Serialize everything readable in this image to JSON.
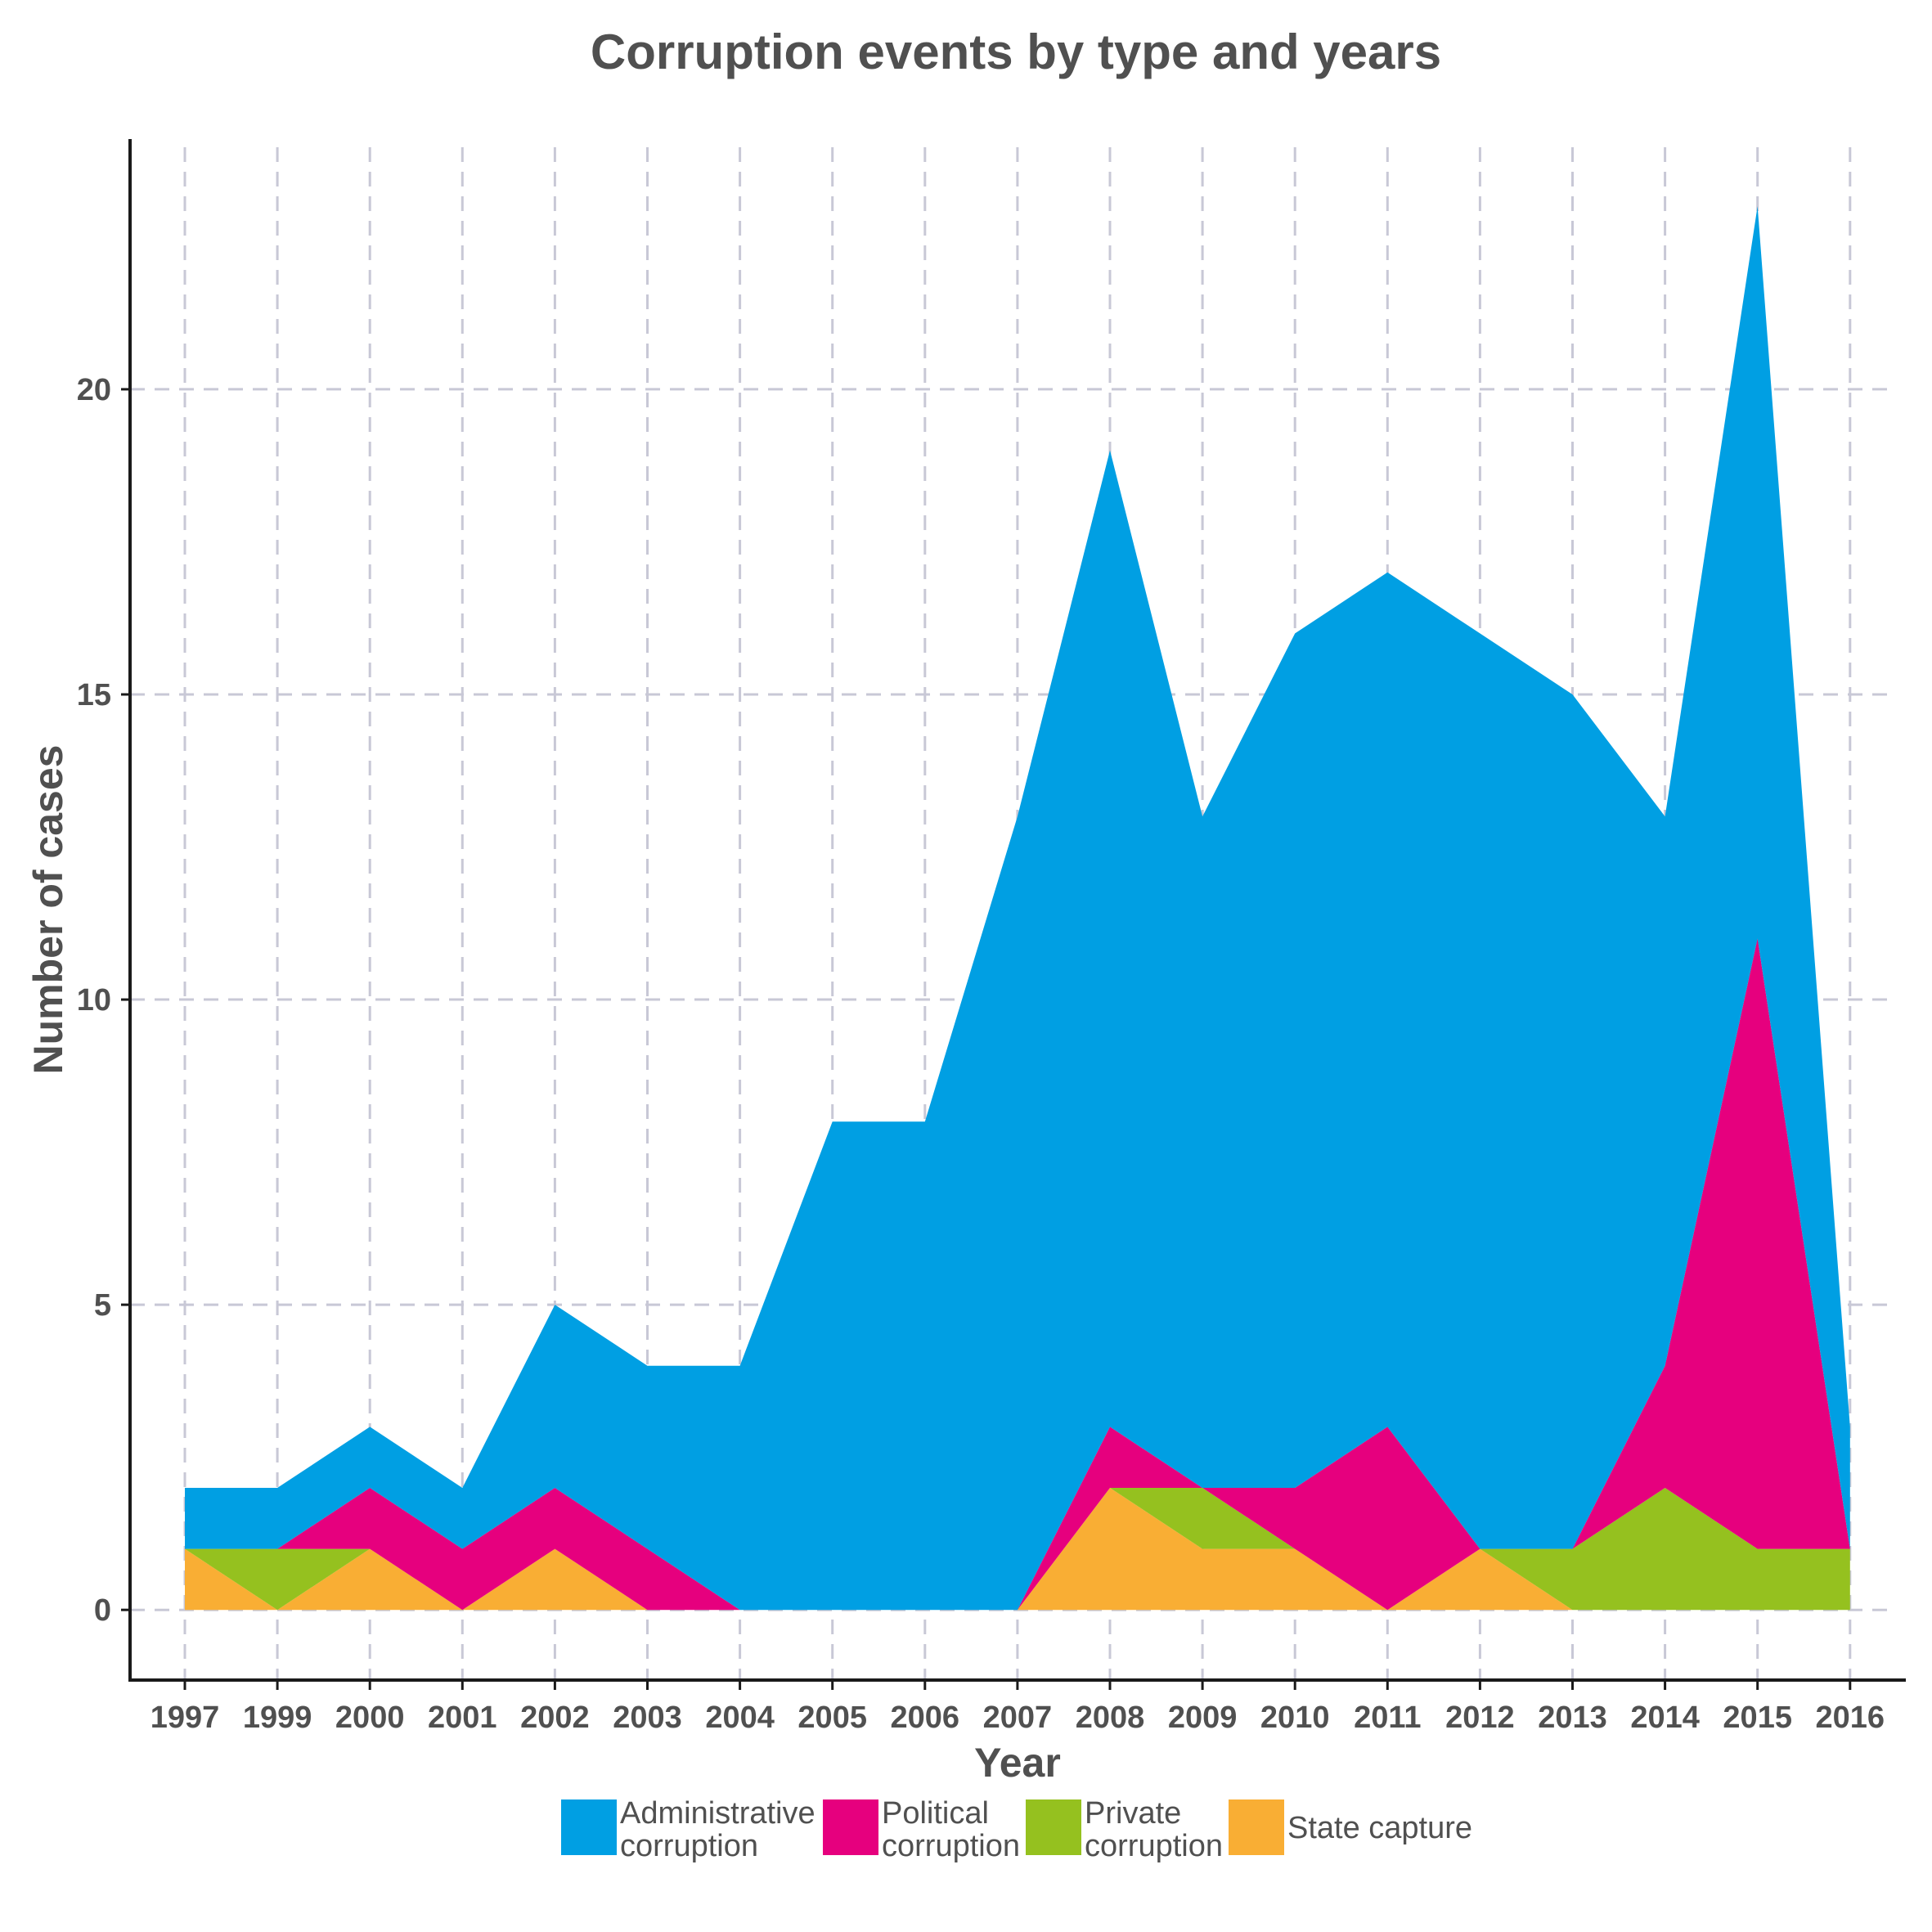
{
  "chart_data": {
    "type": "area",
    "stacked": true,
    "title": "Corruption events by type and years",
    "xlabel": "Year",
    "ylabel": "Number of cases",
    "x": [
      "1997",
      "1999",
      "2000",
      "2001",
      "2002",
      "2003",
      "2004",
      "2005",
      "2006",
      "2007",
      "2008",
      "2009",
      "2010",
      "2011",
      "2012",
      "2013",
      "2014",
      "2015",
      "2016"
    ],
    "ylim": [
      -1.15,
      24.1
    ],
    "yticks": [
      0,
      5,
      10,
      15,
      20
    ],
    "grid": true,
    "legend_position": "bottom",
    "series": [
      {
        "name": "State capture",
        "color": "#f9ae34",
        "values": [
          1,
          0,
          1,
          0,
          1,
          0,
          0,
          0,
          0,
          0,
          2,
          1,
          1,
          0,
          1,
          0,
          0,
          0,
          0
        ]
      },
      {
        "name": "Private corruption",
        "color": "#95c11f",
        "values": [
          0,
          1,
          0,
          0,
          0,
          0,
          0,
          0,
          0,
          0,
          0,
          1,
          0,
          0,
          0,
          1,
          2,
          1,
          1
        ]
      },
      {
        "name": "Political corruption",
        "color": "#e6007e",
        "values": [
          0,
          0,
          1,
          1,
          1,
          1,
          0,
          0,
          0,
          0,
          1,
          0,
          1,
          3,
          0,
          0,
          2,
          10,
          0
        ]
      },
      {
        "name": "Administrative corruption",
        "color": "#009fe3",
        "values": [
          1,
          1,
          1,
          1,
          3,
          3,
          4,
          8,
          8,
          13,
          16,
          11,
          14,
          14,
          15,
          14,
          9,
          12,
          2
        ]
      }
    ],
    "legend": [
      {
        "label_lines": [
          "Administrative",
          "corruption"
        ],
        "color": "#009fe3"
      },
      {
        "label_lines": [
          "Political",
          "corruption"
        ],
        "color": "#e6007e"
      },
      {
        "label_lines": [
          "Private",
          "corruption"
        ],
        "color": "#95c11f"
      },
      {
        "label_lines": [
          "State capture"
        ],
        "color": "#f9ae34"
      }
    ]
  }
}
